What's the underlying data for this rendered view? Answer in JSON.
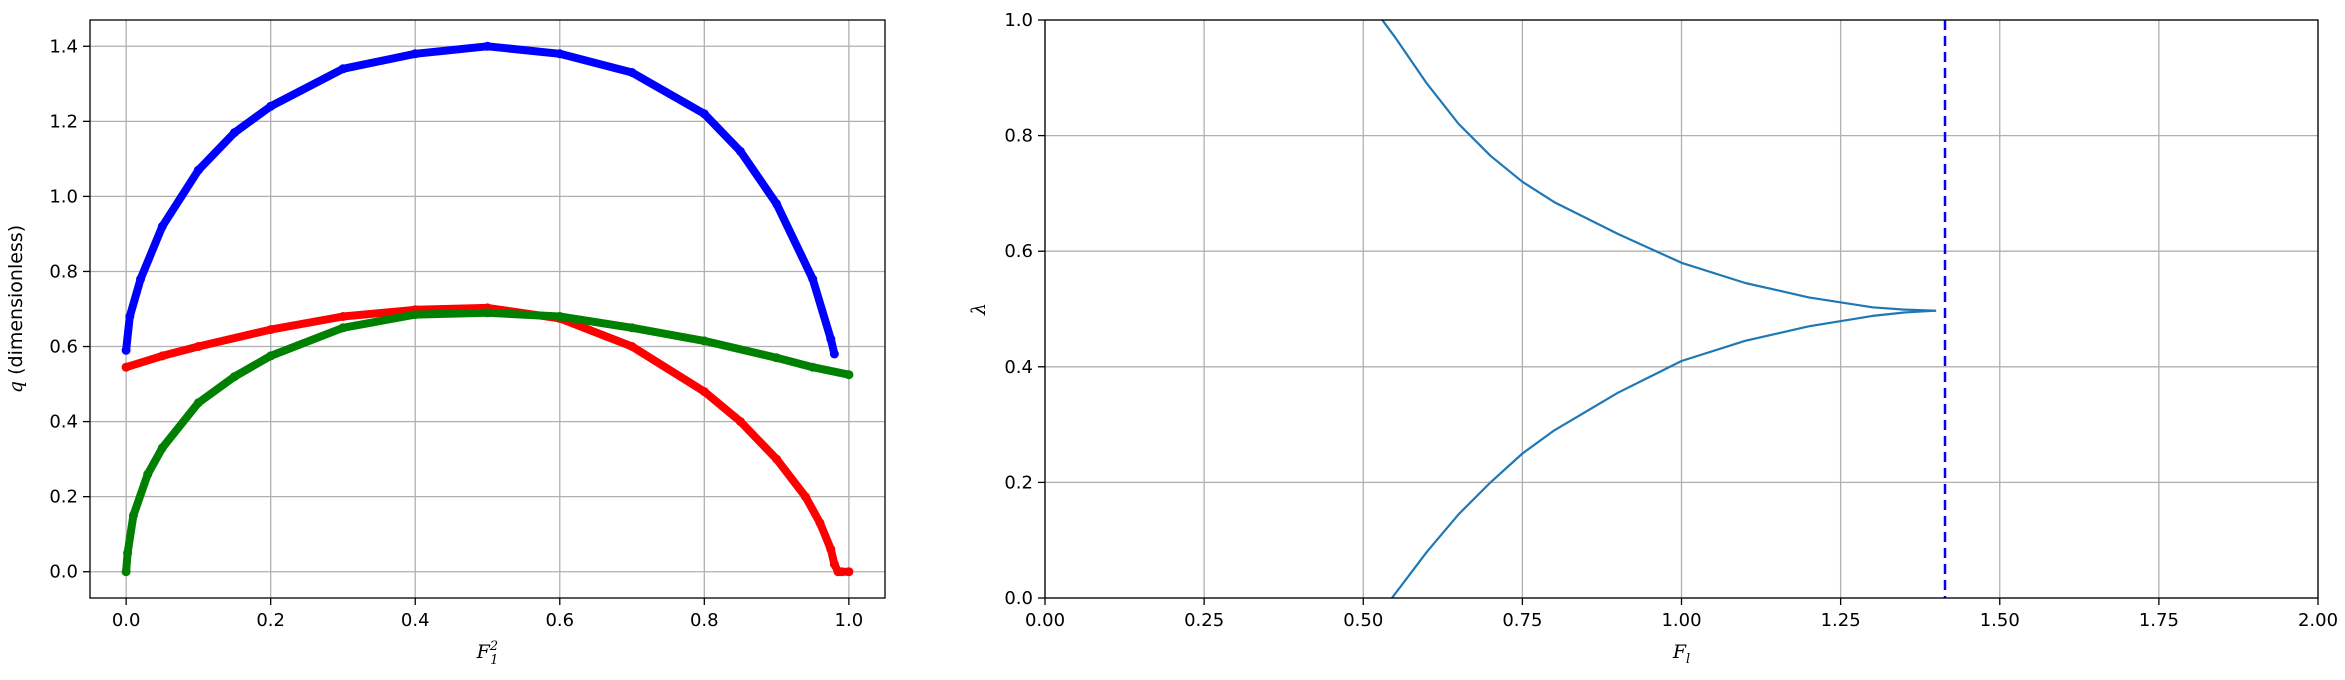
{
  "chart_data": [
    {
      "type": "scatter",
      "xlabel": "F",
      "xlabel_sub": "1",
      "xlabel_sup": "2",
      "ylabel_sym": "q",
      "ylabel_rest": " (dimensionless)",
      "xlim": [
        -0.05,
        1.05
      ],
      "ylim": [
        -0.07,
        1.47
      ],
      "xticks": [
        0.0,
        0.2,
        0.4,
        0.6,
        0.8,
        1.0
      ],
      "xtick_labels": [
        "0.0",
        "0.2",
        "0.4",
        "0.6",
        "0.8",
        "1.0"
      ],
      "yticks": [
        0.0,
        0.2,
        0.4,
        0.6,
        0.8,
        1.0,
        1.2,
        1.4
      ],
      "ytick_labels": [
        "0.0",
        "0.2",
        "0.4",
        "0.6",
        "0.8",
        "1.0",
        "1.2",
        "1.4"
      ],
      "grid": true,
      "series": [
        {
          "color": "#0000ff",
          "x": [
            0.0,
            0.005,
            0.02,
            0.05,
            0.1,
            0.15,
            0.2,
            0.3,
            0.4,
            0.5,
            0.6,
            0.7,
            0.8,
            0.85,
            0.9,
            0.95,
            0.975,
            0.98
          ],
          "y": [
            0.59,
            0.68,
            0.78,
            0.92,
            1.07,
            1.17,
            1.24,
            1.34,
            1.38,
            1.4,
            1.38,
            1.33,
            1.22,
            1.12,
            0.98,
            0.78,
            0.62,
            0.58
          ]
        },
        {
          "color": "#ff0000",
          "x": [
            0.0,
            0.05,
            0.1,
            0.2,
            0.3,
            0.4,
            0.5,
            0.6,
            0.7,
            0.8,
            0.85,
            0.9,
            0.94,
            0.96,
            0.975,
            0.98,
            0.985,
            0.99,
            1.0
          ],
          "y": [
            0.545,
            0.575,
            0.6,
            0.645,
            0.68,
            0.698,
            0.703,
            0.675,
            0.6,
            0.48,
            0.4,
            0.3,
            0.2,
            0.13,
            0.06,
            0.02,
            0.0,
            0.0,
            0.0
          ]
        },
        {
          "color": "#008000",
          "x": [
            0.0,
            0.002,
            0.01,
            0.03,
            0.05,
            0.1,
            0.15,
            0.2,
            0.3,
            0.4,
            0.5,
            0.6,
            0.7,
            0.8,
            0.9,
            0.95,
            1.0
          ],
          "y": [
            0.0,
            0.05,
            0.15,
            0.26,
            0.33,
            0.45,
            0.52,
            0.575,
            0.65,
            0.685,
            0.69,
            0.68,
            0.65,
            0.615,
            0.57,
            0.545,
            0.525
          ]
        }
      ]
    },
    {
      "type": "line",
      "xlabel": "F",
      "xlabel_sub": "l",
      "ylabel": "λ",
      "xlim": [
        0.0,
        2.0
      ],
      "ylim": [
        0.0,
        1.0
      ],
      "xticks": [
        0.0,
        0.25,
        0.5,
        0.75,
        1.0,
        1.25,
        1.5,
        1.75,
        2.0
      ],
      "xtick_labels": [
        "0.00",
        "0.25",
        "0.50",
        "0.75",
        "1.00",
        "1.25",
        "1.50",
        "1.75",
        "2.00"
      ],
      "yticks": [
        0.0,
        0.2,
        0.4,
        0.6,
        0.8,
        1.0
      ],
      "ytick_labels": [
        "0.0",
        "0.2",
        "0.4",
        "0.6",
        "0.8",
        "1.0"
      ],
      "grid": true,
      "series": [
        {
          "color": "#1f77b4",
          "x": [
            0.53,
            0.55,
            0.6,
            0.65,
            0.7,
            0.75,
            0.8,
            0.9,
            1.0,
            1.1,
            1.2,
            1.3,
            1.35,
            1.4
          ],
          "y": [
            1.0,
            0.97,
            0.89,
            0.82,
            0.765,
            0.72,
            0.685,
            0.63,
            0.58,
            0.545,
            0.52,
            0.503,
            0.499,
            0.497
          ]
        },
        {
          "color": "#1f77b4",
          "x": [
            0.545,
            0.6,
            0.65,
            0.7,
            0.75,
            0.8,
            0.9,
            1.0,
            1.1,
            1.2,
            1.3,
            1.35,
            1.4
          ],
          "y": [
            0.0,
            0.08,
            0.145,
            0.2,
            0.25,
            0.29,
            0.355,
            0.41,
            0.445,
            0.47,
            0.488,
            0.494,
            0.497
          ]
        }
      ],
      "vline": {
        "x": 1.414,
        "color": "#0000ff",
        "style": "dashed"
      }
    }
  ]
}
